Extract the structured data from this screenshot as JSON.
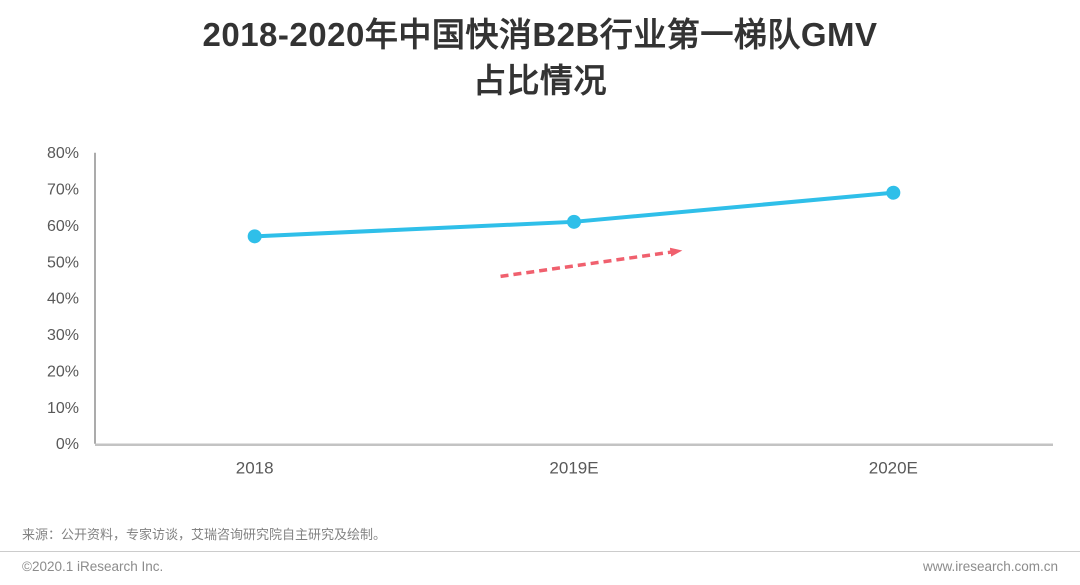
{
  "title": {
    "line1": "2018-2020年中国快消B2B行业第一梯队GMV",
    "line2": "占比情况"
  },
  "chart_data": {
    "type": "line",
    "title": "2018-2020年中国快消B2B行业第一梯队GMV占比情况",
    "categories": [
      "2018",
      "2019E",
      "2020E"
    ],
    "values": [
      57,
      61,
      69
    ],
    "unit": "%",
    "ylim": [
      0,
      80
    ],
    "yticks": [
      0,
      10,
      20,
      30,
      40,
      50,
      60,
      70,
      80
    ],
    "ytick_labels": [
      "0%",
      "10%",
      "20%",
      "30%",
      "40%",
      "50%",
      "60%",
      "70%",
      "80%"
    ],
    "xlabel": "",
    "ylabel": "",
    "grid": false,
    "legend": "none",
    "line_color": "#2fbfe9",
    "axis_color": "#8f8f8f",
    "baseline_color": "#c3c3c3",
    "tick_label_color": "#595959",
    "annotation": {
      "type": "trend-arrow",
      "style": "dashed",
      "color": "#f0606e",
      "from": {
        "x": 0.77,
        "y": 46
      },
      "to": {
        "x": 1.33,
        "y": 53
      }
    }
  },
  "source": {
    "text": "来源：公开资料，专家访谈，艾瑞咨询研究院自主研究及绘制。"
  },
  "footer": {
    "left": "©2020.1 iResearch Inc.",
    "right": "www.iresearch.com.cn"
  }
}
